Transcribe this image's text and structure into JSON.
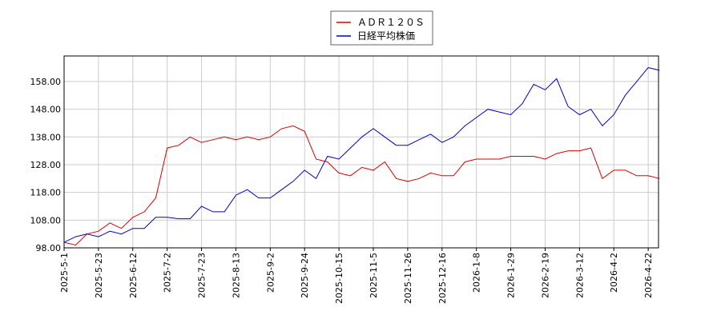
{
  "chart_data": {
    "type": "line",
    "categories": [
      "2025-5-1",
      null,
      null,
      "2025-5-23",
      null,
      null,
      "2025-6-12",
      null,
      null,
      "2025-7-2",
      null,
      null,
      "2025-7-23",
      null,
      null,
      "2025-8-13",
      null,
      null,
      "2025-9-2",
      null,
      null,
      "2025-9-24",
      null,
      null,
      "2025-10-15",
      null,
      null,
      "2025-11-5",
      null,
      null,
      "2025-11-26",
      null,
      null,
      "2025-12-16",
      null,
      null,
      "2026-1-8",
      null,
      null,
      "2026-1-29",
      null,
      null,
      "2026-2-19",
      null,
      null,
      "2026-3-12",
      null,
      null,
      "2026-4-2",
      null,
      null,
      "2026-4-22",
      null
    ],
    "series": [
      {
        "name": "ＡＤＲ１２０Ｓ",
        "color": "#dd0000",
        "values": [
          100,
          99,
          103,
          104,
          107,
          105,
          109,
          111,
          116,
          134,
          135,
          138,
          136,
          137,
          138,
          137,
          138,
          137,
          138,
          141,
          142,
          140,
          130,
          129,
          125,
          124,
          127,
          126,
          129,
          123,
          122,
          123,
          125,
          124,
          124,
          129,
          130,
          130,
          130,
          131,
          131,
          131,
          130,
          132,
          133,
          133,
          134,
          123,
          126,
          126,
          124,
          124,
          123
        ]
      },
      {
        "name": "日経平均株価",
        "color": "#0000cc",
        "values": [
          100,
          102,
          103,
          102,
          104,
          103,
          105,
          105,
          109,
          109,
          108.5,
          108.5,
          113,
          111,
          111,
          117,
          119,
          116,
          116,
          119,
          122,
          126,
          123,
          131,
          130,
          134,
          138,
          141,
          138,
          135,
          135,
          137,
          139,
          136,
          138,
          142,
          145,
          148,
          147,
          146,
          150,
          157,
          155,
          159,
          149,
          146,
          148,
          142,
          146,
          153,
          158,
          163,
          162
        ]
      }
    ],
    "ylim": [
      98,
      167.2
    ],
    "yticks": [
      {
        "value": 98,
        "label": "98.00"
      },
      {
        "value": 108,
        "label": "108.00"
      },
      {
        "value": 118,
        "label": "118.00"
      },
      {
        "value": 128,
        "label": "128.00"
      },
      {
        "value": 138,
        "label": "138.00"
      },
      {
        "value": 148,
        "label": "148.00"
      },
      {
        "value": 158,
        "label": "158.00"
      }
    ],
    "grid": true
  }
}
